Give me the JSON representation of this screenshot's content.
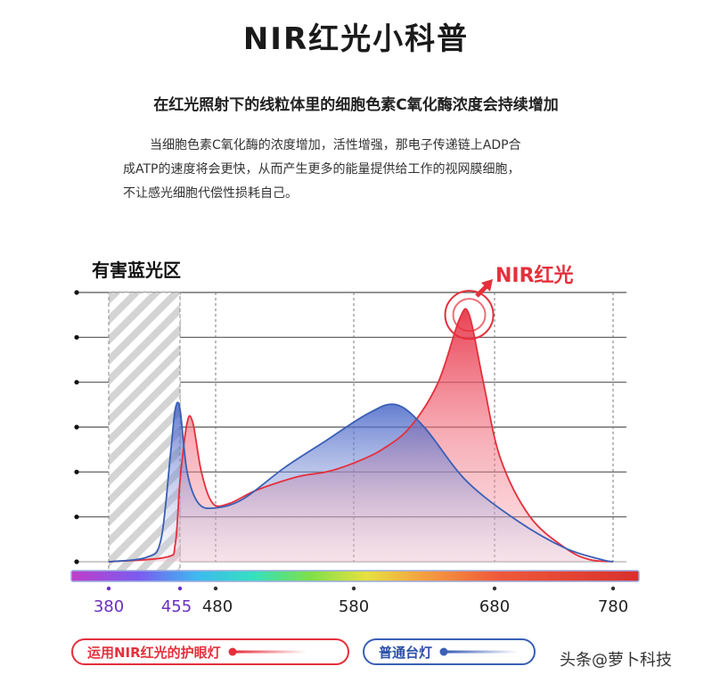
{
  "title": "NIR红光小科普",
  "subtitle": "在红光照射下的线粒体里的细胞色素C氧化酶浓度会持续增加",
  "paragraph": {
    "line1": "当细胞色素C氧化酶的浓度增加，活性增强，那电子传递链上ADP合",
    "line2": "成ATP的速度将会更快，从而产生更多的能量提供给工作的视网膜细胞，",
    "line3": "不让感光细胞代偿性损耗自己。"
  },
  "chart_data": {
    "type": "area",
    "x_ticks": [
      380,
      455,
      480,
      580,
      680,
      780
    ],
    "x_ticks_purple": [
      380,
      455
    ],
    "xlim": [
      380,
      780
    ],
    "ylim": [
      0,
      6
    ],
    "grid": true,
    "blue_region_label": "有害蓝光区",
    "blue_region": [
      380,
      455
    ],
    "peak_label": "NIR红光",
    "series": [
      {
        "name": "运用NIR红光的护眼灯",
        "color": "#e5303c",
        "points": [
          [
            380,
            0
          ],
          [
            440,
            0.1
          ],
          [
            450,
            0.4
          ],
          [
            455,
            1.8
          ],
          [
            460,
            3.1
          ],
          [
            464,
            3.1
          ],
          [
            470,
            2.0
          ],
          [
            478,
            1.3
          ],
          [
            490,
            1.3
          ],
          [
            510,
            1.6
          ],
          [
            540,
            1.9
          ],
          [
            560,
            2.0
          ],
          [
            580,
            2.2
          ],
          [
            600,
            2.5
          ],
          [
            620,
            3.0
          ],
          [
            640,
            4.0
          ],
          [
            655,
            5.4
          ],
          [
            662,
            5.5
          ],
          [
            672,
            4.0
          ],
          [
            685,
            2.3
          ],
          [
            710,
            1.0
          ],
          [
            740,
            0.3
          ],
          [
            760,
            0.05
          ],
          [
            780,
            0
          ]
        ]
      },
      {
        "name": "普通台灯",
        "color": "#3a5fb5",
        "points": [
          [
            380,
            0
          ],
          [
            420,
            0.1
          ],
          [
            435,
            0.5
          ],
          [
            445,
            2.4
          ],
          [
            450,
            3.4
          ],
          [
            455,
            3.4
          ],
          [
            460,
            2.0
          ],
          [
            468,
            1.3
          ],
          [
            480,
            1.2
          ],
          [
            500,
            1.4
          ],
          [
            530,
            2.1
          ],
          [
            560,
            2.7
          ],
          [
            590,
            3.3
          ],
          [
            610,
            3.5
          ],
          [
            630,
            3.0
          ],
          [
            660,
            1.8
          ],
          [
            700,
            0.9
          ],
          [
            740,
            0.3
          ],
          [
            770,
            0.05
          ],
          [
            780,
            0
          ]
        ]
      }
    ]
  },
  "legend": {
    "nir_label": "运用NIR红光的护眼灯",
    "lamp_label": "普通台灯"
  },
  "watermark": "头条@萝卜科技"
}
